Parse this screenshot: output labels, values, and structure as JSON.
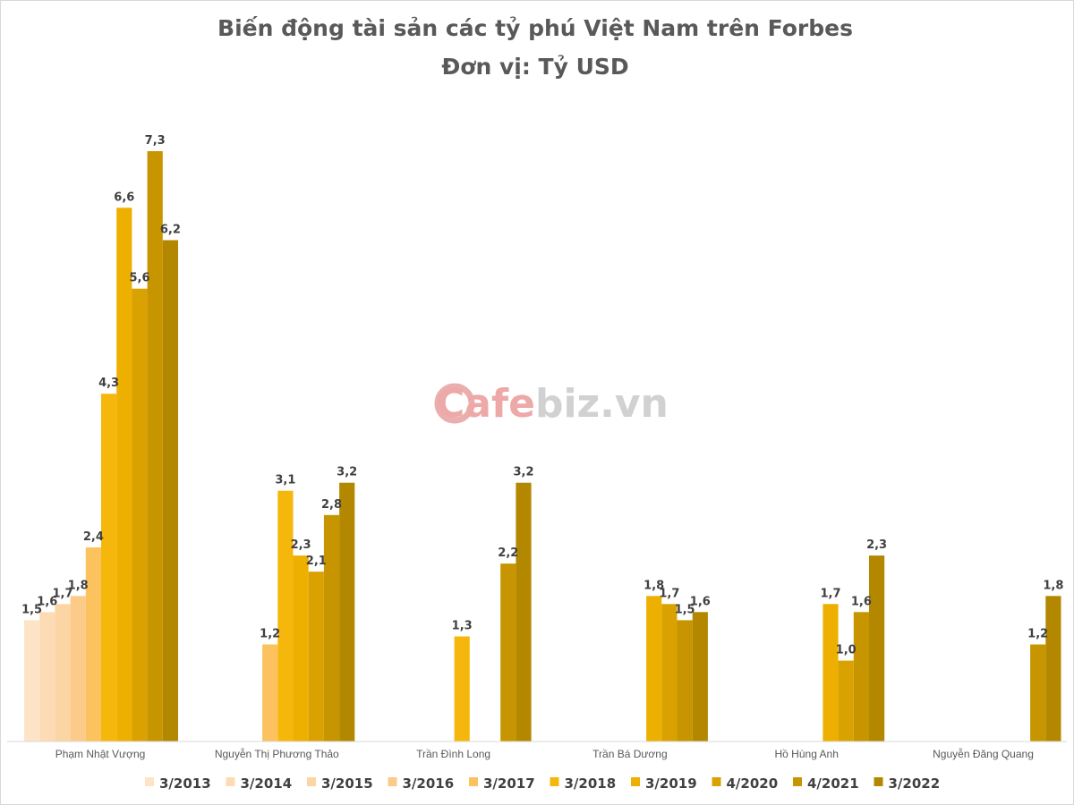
{
  "watermark": {
    "part1": "Cafe",
    "part2": "biz",
    "part3": ".vn"
  },
  "chart_data": {
    "type": "bar",
    "title": "Biến động tài sản các tỷ phú Việt Nam trên Forbes",
    "subtitle": "Đơn vị: Tỷ USD",
    "categories": [
      "Phạm Nhật Vượng",
      "Nguyễn Thị Phương Thảo",
      "Trần Đình Long",
      "Trần Bá Dương",
      "Hồ Hùng Anh",
      "Nguyễn Đăng Quang"
    ],
    "legend_position": "bottom",
    "grid": false,
    "ylim": [
      0,
      8
    ],
    "series": [
      {
        "name": "3/2013",
        "color": "#fde4c6",
        "values": [
          1.5,
          null,
          null,
          null,
          null,
          null
        ],
        "labels": [
          "1,5",
          "",
          "",
          "",
          "",
          ""
        ]
      },
      {
        "name": "3/2014",
        "color": "#fddcb5",
        "values": [
          1.6,
          null,
          null,
          null,
          null,
          null
        ],
        "labels": [
          "1,6",
          "",
          "",
          "",
          "",
          ""
        ]
      },
      {
        "name": "3/2015",
        "color": "#fcd5a4",
        "values": [
          1.7,
          null,
          null,
          null,
          null,
          null
        ],
        "labels": [
          "1,7",
          "",
          "",
          "",
          "",
          ""
        ]
      },
      {
        "name": "3/2016",
        "color": "#fccb8a",
        "values": [
          1.8,
          null,
          null,
          null,
          null,
          null
        ],
        "labels": [
          "1,8",
          "",
          "",
          "",
          "",
          ""
        ]
      },
      {
        "name": "3/2017",
        "color": "#fbc25e",
        "values": [
          2.4,
          1.2,
          null,
          null,
          null,
          null
        ],
        "labels": [
          "2,4",
          "1,2",
          "",
          "",
          "",
          ""
        ]
      },
      {
        "name": "3/2018",
        "color": "#f6b70c",
        "values": [
          4.3,
          3.1,
          1.3,
          null,
          null,
          null
        ],
        "labels": [
          "4,3",
          "3,1",
          "1,3",
          "",
          "",
          ""
        ]
      },
      {
        "name": "3/2019",
        "color": "#eeb000",
        "values": [
          6.6,
          2.3,
          null,
          1.8,
          1.7,
          null
        ],
        "labels": [
          "6,6",
          "2,3",
          "",
          "1,8",
          "1,7",
          ""
        ]
      },
      {
        "name": "4/2020",
        "color": "#d9a200",
        "values": [
          5.6,
          2.1,
          null,
          1.7,
          1.0,
          null
        ],
        "labels": [
          "5,6",
          "2,1",
          "",
          "1,7",
          "1,0",
          ""
        ]
      },
      {
        "name": "4/2021",
        "color": "#c79500",
        "values": [
          7.3,
          2.8,
          2.2,
          1.5,
          1.6,
          1.2
        ],
        "labels": [
          "7,3",
          "2,8",
          "2,2",
          "1,5",
          "1,6",
          "1,2"
        ]
      },
      {
        "name": "3/2022",
        "color": "#b38800",
        "values": [
          6.2,
          3.2,
          3.2,
          1.6,
          2.3,
          1.8
        ],
        "labels": [
          "6,2",
          "3,2",
          "3,2",
          "1,6",
          "2,3",
          "1,8"
        ]
      }
    ]
  }
}
